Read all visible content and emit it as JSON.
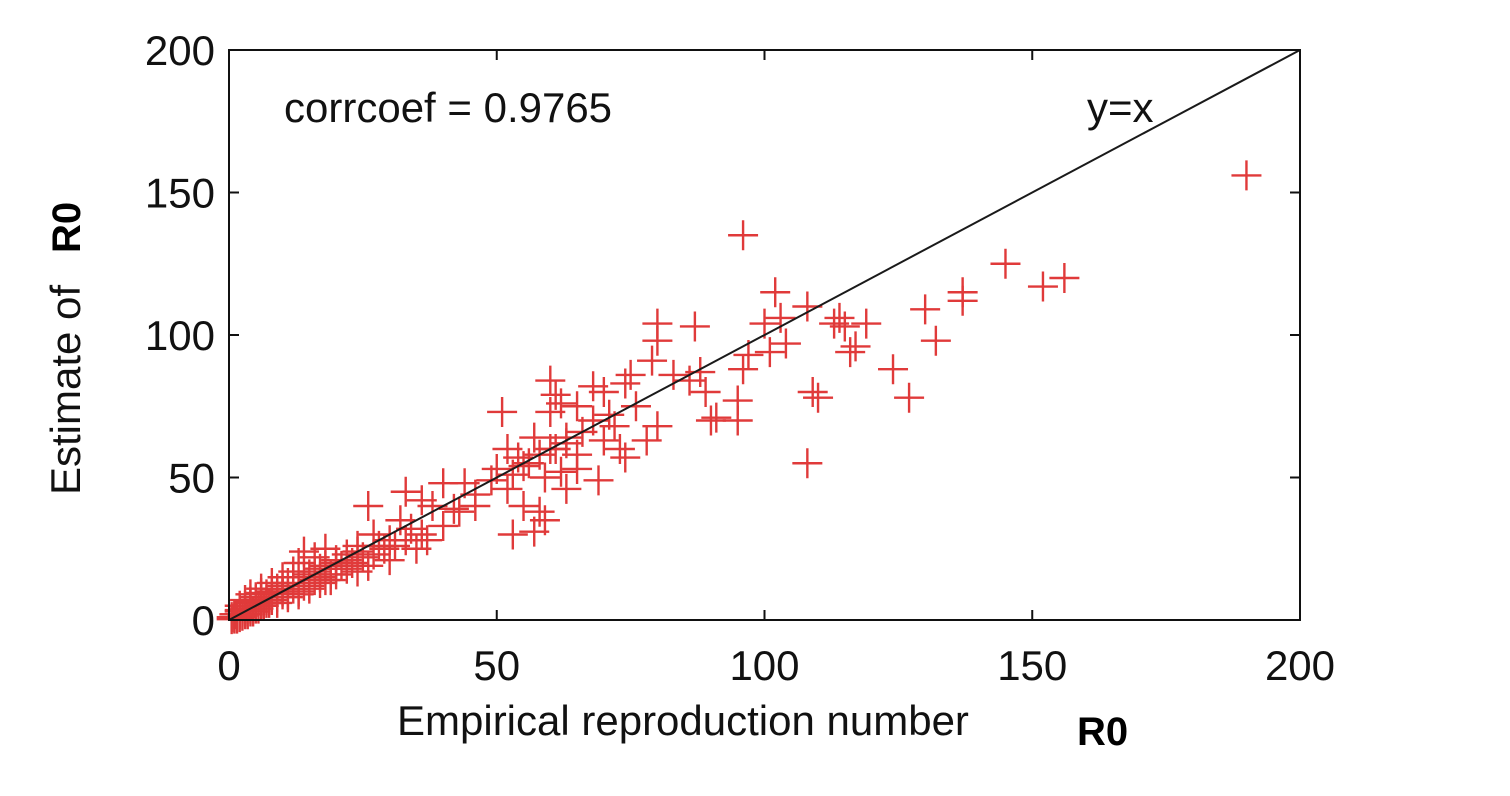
{
  "chart_data": {
    "type": "scatter",
    "xlabel": "Empirical reproduction number",
    "xlabel_symbol": "R0",
    "ylabel": "Estimate of",
    "ylabel_symbol": "R0",
    "xlim": [
      0,
      200
    ],
    "ylim": [
      0,
      200
    ],
    "xticks": [
      "0",
      "50",
      "100",
      "150",
      "200"
    ],
    "yticks": [
      "0",
      "50",
      "100",
      "150",
      "200"
    ],
    "grid": false,
    "marker": "plus",
    "marker_color": "#e03a3a",
    "annotations": {
      "corrcoef": "corrcoef = 0.9765",
      "identity": "y=x"
    },
    "reference_line": {
      "label": "y=x",
      "from": [
        0,
        0
      ],
      "to": [
        200,
        200
      ]
    },
    "points": [
      [
        190,
        156
      ],
      [
        96,
        135
      ],
      [
        145,
        125
      ],
      [
        156,
        120
      ],
      [
        152,
        117
      ],
      [
        102,
        115
      ],
      [
        137,
        115
      ],
      [
        137,
        112
      ],
      [
        130,
        109
      ],
      [
        108,
        110
      ],
      [
        114,
        106
      ],
      [
        103,
        106
      ],
      [
        100,
        104
      ],
      [
        80,
        104
      ],
      [
        113,
        104
      ],
      [
        119,
        104
      ],
      [
        115,
        103
      ],
      [
        87,
        103
      ],
      [
        132,
        98
      ],
      [
        104,
        97
      ],
      [
        80,
        98
      ],
      [
        116,
        94
      ],
      [
        101,
        94
      ],
      [
        97,
        93
      ],
      [
        96,
        88
      ],
      [
        79,
        91
      ],
      [
        117,
        96
      ],
      [
        124,
        88
      ],
      [
        88,
        87
      ],
      [
        86,
        84
      ],
      [
        75,
        86
      ],
      [
        74,
        83
      ],
      [
        68,
        82
      ],
      [
        70,
        80
      ],
      [
        60,
        84
      ],
      [
        61,
        79
      ],
      [
        89,
        80
      ],
      [
        83,
        86
      ],
      [
        109,
        80
      ],
      [
        110,
        78
      ],
      [
        127,
        78
      ],
      [
        95,
        77
      ],
      [
        62,
        76
      ],
      [
        65,
        75
      ],
      [
        60,
        73
      ],
      [
        91,
        71
      ],
      [
        95,
        70
      ],
      [
        90,
        70
      ],
      [
        68,
        70
      ],
      [
        72,
        68
      ],
      [
        80,
        68
      ],
      [
        63,
        64
      ],
      [
        70,
        63
      ],
      [
        57,
        64
      ],
      [
        60,
        60
      ],
      [
        58,
        58
      ],
      [
        54,
        57
      ],
      [
        78,
        63
      ],
      [
        73,
        60
      ],
      [
        65,
        58
      ],
      [
        51,
        73
      ],
      [
        52,
        60
      ],
      [
        63,
        62
      ],
      [
        108,
        55
      ],
      [
        74,
        57
      ],
      [
        55,
        54
      ],
      [
        50,
        53
      ],
      [
        59,
        50
      ],
      [
        69,
        49
      ],
      [
        65,
        53
      ],
      [
        62,
        52
      ],
      [
        52,
        46
      ],
      [
        55,
        40
      ],
      [
        58,
        38
      ],
      [
        59,
        35
      ],
      [
        53,
        30
      ],
      [
        57,
        31
      ],
      [
        63,
        46
      ],
      [
        40,
        48
      ],
      [
        44,
        48
      ],
      [
        46,
        40
      ],
      [
        42,
        39
      ],
      [
        36,
        42
      ],
      [
        33,
        45
      ],
      [
        38,
        40
      ],
      [
        32,
        35
      ],
      [
        34,
        32
      ],
      [
        30,
        28
      ],
      [
        27,
        30
      ],
      [
        37,
        28
      ],
      [
        26,
        40
      ],
      [
        28,
        26
      ],
      [
        31,
        26
      ],
      [
        24,
        24
      ],
      [
        22,
        23
      ],
      [
        20,
        20
      ],
      [
        20,
        18
      ],
      [
        17,
        18
      ],
      [
        16,
        22
      ],
      [
        18,
        25
      ],
      [
        14,
        24
      ],
      [
        13,
        20
      ],
      [
        15,
        16
      ],
      [
        12,
        15
      ],
      [
        11,
        13
      ],
      [
        10,
        12
      ],
      [
        9,
        11
      ],
      [
        8,
        10
      ],
      [
        7,
        9
      ],
      [
        6,
        8
      ],
      [
        5,
        7
      ],
      [
        4,
        6
      ],
      [
        3,
        4
      ],
      [
        2,
        3
      ],
      [
        1,
        2
      ],
      [
        0.5,
        1
      ],
      [
        12,
        11
      ],
      [
        10,
        9
      ],
      [
        8,
        7
      ],
      [
        6,
        5
      ],
      [
        4,
        3
      ],
      [
        2,
        1
      ],
      [
        14,
        12
      ],
      [
        16,
        14
      ],
      [
        18,
        14
      ],
      [
        20,
        16
      ],
      [
        22,
        18
      ],
      [
        13,
        10
      ],
      [
        11,
        9
      ],
      [
        9,
        8
      ],
      [
        7,
        6
      ],
      [
        5,
        4
      ],
      [
        3,
        2
      ],
      [
        1,
        0.5
      ],
      [
        15,
        12
      ],
      [
        17,
        15
      ],
      [
        19,
        16
      ],
      [
        21,
        19
      ],
      [
        23,
        20
      ],
      [
        25,
        22
      ],
      [
        27,
        23
      ],
      [
        29,
        25
      ],
      [
        33,
        28
      ],
      [
        36,
        30
      ],
      [
        40,
        33
      ],
      [
        43,
        38
      ],
      [
        46,
        44
      ],
      [
        49,
        49
      ],
      [
        53,
        51
      ],
      [
        56,
        55
      ],
      [
        61,
        60
      ],
      [
        66,
        66
      ],
      [
        71,
        72
      ],
      [
        76,
        75
      ],
      [
        6,
        11
      ],
      [
        8,
        13
      ],
      [
        10,
        15
      ],
      [
        12,
        17
      ],
      [
        4,
        9
      ],
      [
        3,
        7
      ],
      [
        2,
        5
      ],
      [
        9,
        6
      ],
      [
        11,
        8
      ],
      [
        13,
        9
      ],
      [
        15,
        11
      ],
      [
        17,
        13
      ],
      [
        19,
        14
      ],
      [
        24,
        17
      ],
      [
        26,
        19
      ],
      [
        30,
        21
      ],
      [
        35,
        25
      ],
      [
        14,
        15
      ],
      [
        16,
        17
      ],
      [
        18,
        19
      ],
      [
        20,
        21
      ],
      [
        22,
        21
      ],
      [
        24,
        26
      ],
      [
        1,
        1
      ],
      [
        2,
        2
      ],
      [
        3,
        3
      ],
      [
        4,
        4
      ],
      [
        5,
        5
      ],
      [
        6,
        6
      ],
      [
        7,
        7
      ],
      [
        8,
        8
      ],
      [
        9,
        9
      ],
      [
        10,
        10
      ],
      [
        1.5,
        0.5
      ],
      [
        2.5,
        1.5
      ],
      [
        3.5,
        2
      ],
      [
        4.5,
        3
      ],
      [
        5.5,
        4
      ],
      [
        6.5,
        5
      ],
      [
        7.5,
        6
      ],
      [
        0.5,
        0.3
      ],
      [
        1.2,
        2
      ],
      [
        2,
        3.5
      ],
      [
        3,
        5
      ],
      [
        4,
        6.5
      ],
      [
        5,
        8
      ],
      [
        6,
        9.5
      ]
    ]
  }
}
